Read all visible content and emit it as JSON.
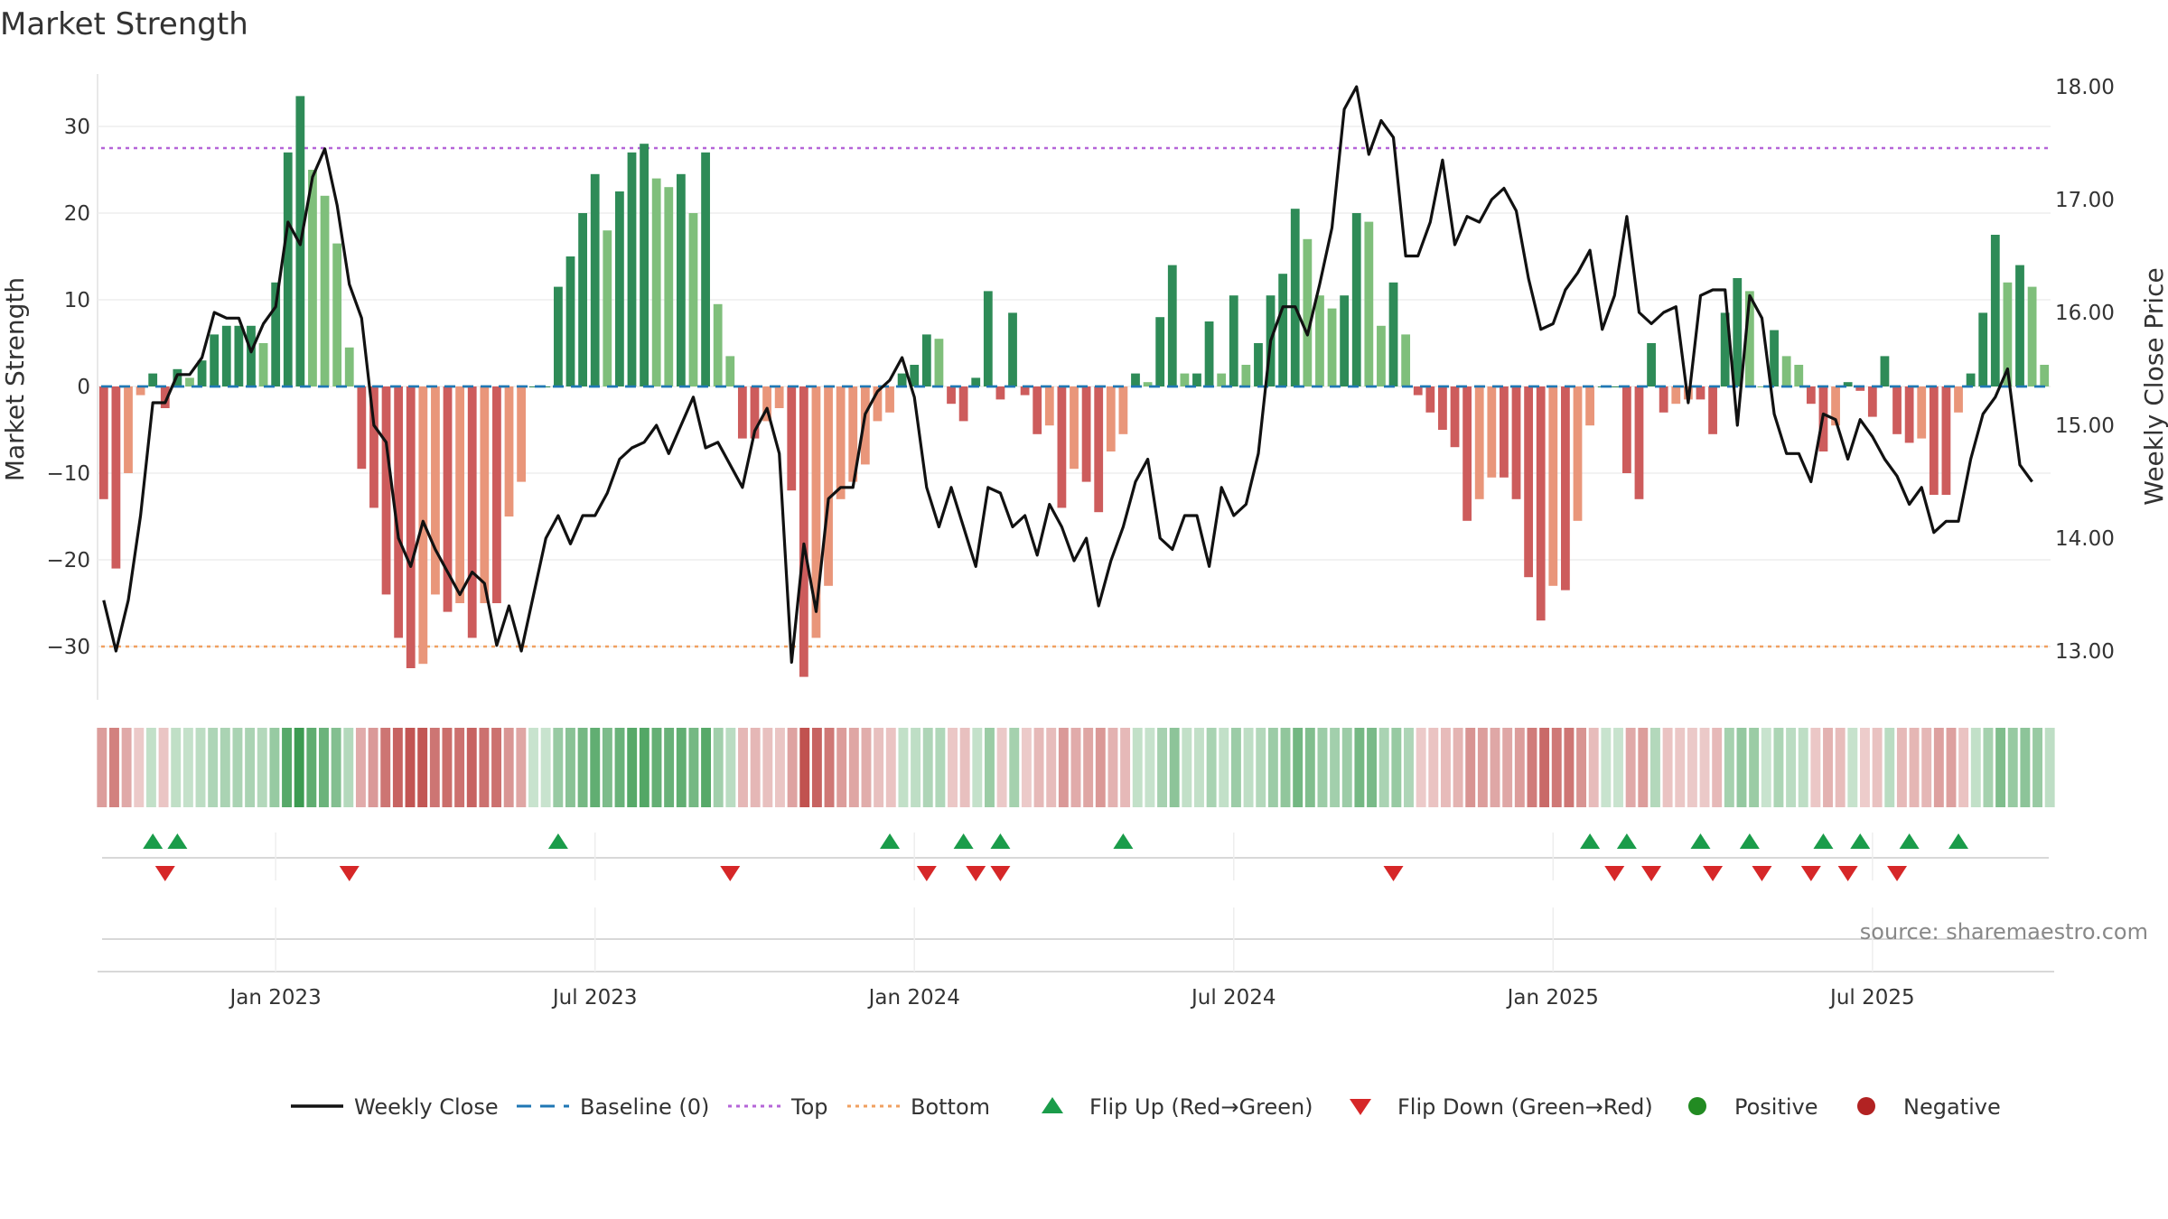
{
  "chart_data": {
    "type": "bar",
    "title": "Market Strength",
    "ylabel_left": "Market Strength",
    "ylabel_right": "Weekly Close Price",
    "source": "source: sharemaestro.com",
    "ylim_left": [
      -36,
      36
    ],
    "ylim_right": [
      12.6,
      18.2
    ],
    "yticks_left": [
      30,
      20,
      10,
      0,
      -10,
      -20,
      -30
    ],
    "yticks_left_labels": [
      "30",
      "20",
      "10",
      "0",
      "−10",
      "−20",
      "−30"
    ],
    "yticks_right": [
      18,
      17,
      16,
      15,
      14,
      13
    ],
    "yticks_right_labels": [
      "18.00",
      "17.00",
      "16.00",
      "15.00",
      "14.00",
      "13.00"
    ],
    "x_tick_positions": [
      14.5,
      40.5,
      66.5,
      92.5,
      118.5,
      144.5
    ],
    "x_tick_labels": [
      "Jan 2023",
      "Jul 2023",
      "Jan 2024",
      "Jul 2024",
      "Jan 2025",
      "Jul 2025"
    ],
    "top_line": 27.5,
    "bottom_line": -30,
    "baseline": 0,
    "strength": [
      -13,
      -21,
      -10,
      -1,
      1.5,
      -2.5,
      2,
      1,
      3,
      6,
      7,
      7,
      7,
      5,
      12,
      27,
      33.5,
      25,
      22,
      16.5,
      4.5,
      -9.5,
      -14,
      -24,
      -29,
      -32.5,
      -32,
      -24,
      -26,
      -25,
      -29,
      -25,
      -25,
      -15,
      -11,
      0,
      0,
      11.5,
      15,
      20,
      24.5,
      18,
      22.5,
      27,
      28,
      24,
      23,
      24.5,
      20,
      27,
      9.5,
      3.5,
      -6,
      -6,
      -4,
      -2.5,
      -12,
      -33.5,
      -29,
      -23,
      -13,
      -11,
      -9,
      -4,
      -3,
      1.5,
      2.5,
      6,
      5.5,
      -2,
      -4,
      1,
      11,
      -1.5,
      8.5,
      -1,
      -5.5,
      -4.5,
      -14,
      -9.5,
      -11,
      -14.5,
      -7.5,
      -5.5,
      1.5,
      0.5,
      8,
      14,
      1.5,
      1.5,
      7.5,
      1.5,
      10.5,
      2.5,
      5,
      10.5,
      13,
      20.5,
      17,
      10.5,
      9,
      10.5,
      20,
      19,
      7,
      12,
      6,
      -1,
      -3,
      -5,
      -7,
      -15.5,
      -13,
      -10.5,
      -10.5,
      -13,
      -22,
      -27,
      -23,
      -23.5,
      -15.5,
      -4.5,
      0,
      0,
      -10,
      -13,
      5,
      -3,
      -2,
      -1.5,
      -1.5,
      -5.5,
      8.5,
      12.5,
      11,
      0,
      6.5,
      3.5,
      2.5,
      -2,
      -7.5,
      -4.5,
      0.5,
      -0.5,
      -3.5,
      3.5,
      -5.5,
      -6.5,
      -6,
      -12.5,
      -12.5,
      -3,
      1.5,
      8.5,
      17.5,
      12,
      14,
      11.5,
      2.5
    ],
    "close": [
      13.45,
      13.0,
      13.45,
      14.2,
      15.2,
      15.2,
      15.45,
      15.45,
      15.6,
      16.0,
      15.95,
      15.95,
      15.65,
      15.9,
      16.05,
      16.8,
      16.6,
      17.2,
      17.45,
      16.95,
      16.25,
      15.95,
      15.0,
      14.85,
      14.0,
      13.75,
      14.15,
      13.9,
      13.7,
      13.5,
      13.7,
      13.6,
      13.05,
      13.4,
      13.0,
      13.5,
      14.0,
      14.2,
      13.95,
      14.2,
      14.2,
      14.4,
      14.7,
      14.8,
      14.85,
      15.0,
      14.75,
      15.0,
      15.25,
      14.8,
      14.85,
      14.65,
      14.45,
      14.95,
      15.15,
      14.75,
      12.9,
      13.95,
      13.35,
      14.35,
      14.45,
      14.45,
      15.1,
      15.3,
      15.4,
      15.6,
      15.25,
      14.45,
      14.1,
      14.45,
      14.1,
      13.75,
      14.45,
      14.4,
      14.1,
      14.2,
      13.85,
      14.3,
      14.1,
      13.8,
      14.0,
      13.4,
      13.8,
      14.1,
      14.5,
      14.7,
      14.0,
      13.9,
      14.2,
      14.2,
      13.75,
      14.45,
      14.2,
      14.3,
      14.75,
      15.75,
      16.05,
      16.05,
      15.8,
      16.25,
      16.75,
      17.8,
      18.0,
      17.4,
      17.7,
      17.55,
      16.5,
      16.5,
      16.8,
      17.35,
      16.6,
      16.85,
      16.8,
      17.0,
      17.1,
      16.9,
      16.3,
      15.85,
      15.9,
      16.2,
      16.35,
      16.55,
      15.85,
      16.15,
      16.85,
      16.0,
      15.9,
      16.0,
      16.05,
      15.2,
      16.15,
      16.2,
      16.2,
      15.0,
      16.15,
      15.95,
      15.1,
      14.75,
      14.75,
      14.5,
      15.1,
      15.05,
      14.7,
      15.05,
      14.9,
      14.7,
      14.55,
      14.3,
      14.45,
      14.05,
      14.15,
      14.15,
      14.7,
      15.1,
      15.25,
      15.5,
      14.65,
      14.5
    ],
    "flip_up_indices": [
      4,
      6,
      37,
      64,
      70,
      73,
      83,
      121,
      124,
      130,
      134,
      140,
      143,
      147,
      151
    ],
    "flip_down_indices": [
      5,
      20,
      51,
      67,
      71,
      73,
      105,
      123,
      126,
      131,
      135,
      139,
      142,
      146
    ],
    "colors": {
      "strong_green": "#2e8b57",
      "light_green": "#7fbf7b",
      "strong_red": "#cd5c5c",
      "light_red": "#e9967a",
      "weekly_close": "#111111",
      "baseline": "#1f77b4",
      "top": "#b565d8",
      "bottom": "#f0a060",
      "flip_up": "#1a9c4a",
      "flip_down": "#d62728",
      "positive": "#228b22",
      "negative": "#b22222"
    },
    "legend": [
      {
        "key": "weekly_close",
        "label": "Weekly Close",
        "symbol": "line"
      },
      {
        "key": "baseline",
        "label": "Baseline (0)",
        "symbol": "dash"
      },
      {
        "key": "top",
        "label": "Top",
        "symbol": "dot"
      },
      {
        "key": "bottom",
        "label": "Bottom",
        "symbol": "dot"
      },
      {
        "key": "flip_up",
        "label": "Flip Up (Red→Green)",
        "symbol": "tri-up"
      },
      {
        "key": "flip_down",
        "label": "Flip Down (Green→Red)",
        "symbol": "tri-down"
      },
      {
        "key": "positive",
        "label": "Positive",
        "symbol": "circle"
      },
      {
        "key": "negative",
        "label": "Negative",
        "symbol": "circle"
      }
    ]
  }
}
